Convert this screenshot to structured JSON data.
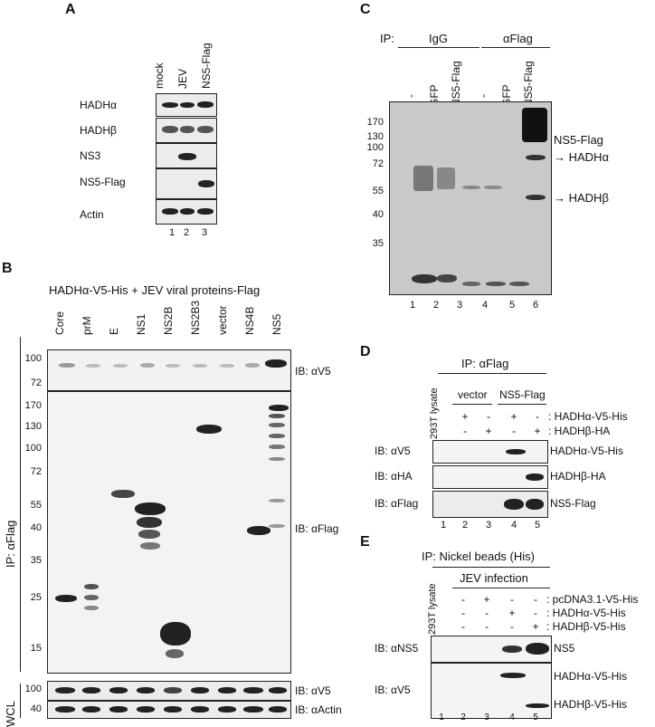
{
  "panel_a": {
    "label": "A",
    "columns": [
      "mock",
      "JEV",
      "NS5-Flag"
    ],
    "rows": [
      "HADHα",
      "HADHβ",
      "NS3",
      "NS5-Flag",
      "Actin"
    ],
    "lanes": [
      "1",
      "2",
      "3"
    ]
  },
  "panel_b": {
    "label": "B",
    "title": "HADHα-V5-His + JEV viral proteins-Flag",
    "columns": [
      "Core",
      "prM",
      "E",
      "NS1",
      "NS2B",
      "NS2B3",
      "vector",
      "NS4B",
      "NS5"
    ],
    "ip_label": "IP: αFlag",
    "wcl_label": "WCL",
    "ib_top": "IB: αV5",
    "ib_middle": "IB: αFlag",
    "ib_wcl1": "IB: αV5",
    "ib_wcl2": "IB: αActin",
    "mw_top": [
      "100",
      "72"
    ],
    "mw_middle": [
      "170",
      "130",
      "100",
      "72",
      "55",
      "40",
      "35",
      "25",
      "15"
    ],
    "mw_wcl1": "100",
    "mw_wcl2": "40",
    "lanes": [
      "1",
      "2",
      "3",
      "4",
      "5",
      "6",
      "7",
      "8",
      "9"
    ]
  },
  "panel_c": {
    "label": "C",
    "ip": "IP:",
    "group1": "IgG",
    "group2": "αFlag",
    "columns": [
      "-",
      "GFP",
      "NS5-Flag",
      "-",
      "GFP",
      "NS5-Flag"
    ],
    "mw": [
      "170",
      "130",
      "100",
      "72",
      "55",
      "40",
      "35"
    ],
    "annotations": [
      "NS5-Flag",
      "→ HADHα",
      "→ HADHβ"
    ],
    "lanes": [
      "1",
      "2",
      "3",
      "4",
      "5",
      "6"
    ]
  },
  "panel_d": {
    "label": "D",
    "ip": "IP: αFlag",
    "lysate": "293T lysate",
    "group1": "vector",
    "group2": "NS5-Flag",
    "row1_syms": [
      "+",
      "-",
      "+",
      "-"
    ],
    "row1_label": ": HADHα-V5-His",
    "row2_syms": [
      "-",
      "+",
      "-",
      "+"
    ],
    "row2_label": ": HADHβ-HA",
    "ib": [
      "IB: αV5",
      "IB: αHA",
      "IB: αFlag"
    ],
    "right": [
      "HADHα-V5-His",
      "HADHβ-HA",
      "NS5-Flag"
    ],
    "lanes": [
      "1",
      "2",
      "3",
      "4",
      "5"
    ]
  },
  "panel_e": {
    "label": "E",
    "ip": "IP: Nickel beads (His)",
    "lysate": "293T lysate",
    "group": "JEV infection",
    "row1_syms": [
      "-",
      "+",
      "-",
      "-"
    ],
    "row1_label": ": pcDNA3.1-V5-His",
    "row2_syms": [
      "-",
      "-",
      "+",
      "-"
    ],
    "row2_label": ": HADHα-V5-His",
    "row3_syms": [
      "-",
      "-",
      "-",
      "+"
    ],
    "row3_label": ": HADHβ-V5-His",
    "ib": [
      "IB: αNS5",
      "IB: αV5"
    ],
    "right": [
      "NS5",
      "HADHα-V5-His",
      "HADHβ-V5-His"
    ],
    "lanes": [
      "1",
      "2",
      "3",
      "4",
      "5"
    ]
  }
}
